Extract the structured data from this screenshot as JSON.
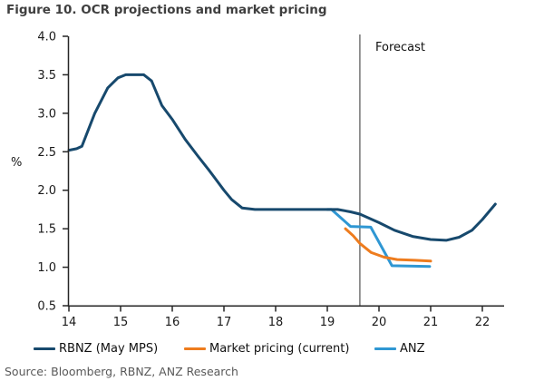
{
  "title": "Figure 10. OCR projections and market pricing",
  "source": "Source: Bloomberg, RBNZ, ANZ Research",
  "axis": {
    "color": "#262626"
  },
  "forecast_line_color": "#757575",
  "chart_data": {
    "type": "line",
    "title": "Figure 10. OCR projections and market pricing",
    "xlabel": "",
    "ylabel": "%",
    "forecast_label": "Forecast",
    "forecast_x": 19.63,
    "xlim": [
      14,
      22.45
    ],
    "ylim": [
      0.5,
      4.0
    ],
    "grid": false,
    "legend_position": "bottom",
    "y_ticks": [
      "4.0",
      "3.5",
      "3.0",
      "2.5",
      "2.0",
      "1.5",
      "1.0",
      "0.5"
    ],
    "x_ticks": [
      "14",
      "15",
      "16",
      "17",
      "18",
      "19",
      "20",
      "21",
      "22"
    ],
    "series": [
      {
        "name": "RBNZ (May MPS)",
        "color": "#17496d",
        "points": [
          [
            14.0,
            2.52
          ],
          [
            14.15,
            2.54
          ],
          [
            14.25,
            2.57
          ],
          [
            14.5,
            3.0
          ],
          [
            14.75,
            3.33
          ],
          [
            14.95,
            3.46
          ],
          [
            15.1,
            3.5
          ],
          [
            15.45,
            3.5
          ],
          [
            15.6,
            3.42
          ],
          [
            15.8,
            3.1
          ],
          [
            16.0,
            2.92
          ],
          [
            16.25,
            2.66
          ],
          [
            16.5,
            2.44
          ],
          [
            16.7,
            2.27
          ],
          [
            16.8,
            2.18
          ],
          [
            17.0,
            2.0
          ],
          [
            17.15,
            1.88
          ],
          [
            17.35,
            1.77
          ],
          [
            17.6,
            1.75
          ],
          [
            19.2,
            1.75
          ],
          [
            19.45,
            1.72
          ],
          [
            19.63,
            1.69
          ],
          [
            20.0,
            1.58
          ],
          [
            20.3,
            1.48
          ],
          [
            20.65,
            1.4
          ],
          [
            21.0,
            1.36
          ],
          [
            21.3,
            1.35
          ],
          [
            21.55,
            1.39
          ],
          [
            21.8,
            1.48
          ],
          [
            22.0,
            1.62
          ],
          [
            22.25,
            1.82
          ]
        ]
      },
      {
        "name": "Market pricing (current)",
        "color": "#ee7c1e",
        "points": [
          [
            19.35,
            1.5
          ],
          [
            19.5,
            1.41
          ],
          [
            19.63,
            1.31
          ],
          [
            19.85,
            1.19
          ],
          [
            20.1,
            1.13
          ],
          [
            20.35,
            1.1
          ],
          [
            20.7,
            1.09
          ],
          [
            21.0,
            1.08
          ]
        ]
      },
      {
        "name": "ANZ",
        "color": "#2f97d3",
        "points": [
          [
            19.0,
            1.75
          ],
          [
            19.08,
            1.75
          ],
          [
            19.45,
            1.53
          ],
          [
            19.84,
            1.52
          ],
          [
            20.25,
            1.02
          ],
          [
            20.98,
            1.01
          ]
        ]
      }
    ]
  },
  "legend": {
    "items": [
      {
        "label": "RBNZ (May MPS)",
        "color": "#17496d"
      },
      {
        "label": "Market pricing (current)",
        "color": "#ee7c1e"
      },
      {
        "label": "ANZ",
        "color": "#2f97d3"
      }
    ]
  }
}
